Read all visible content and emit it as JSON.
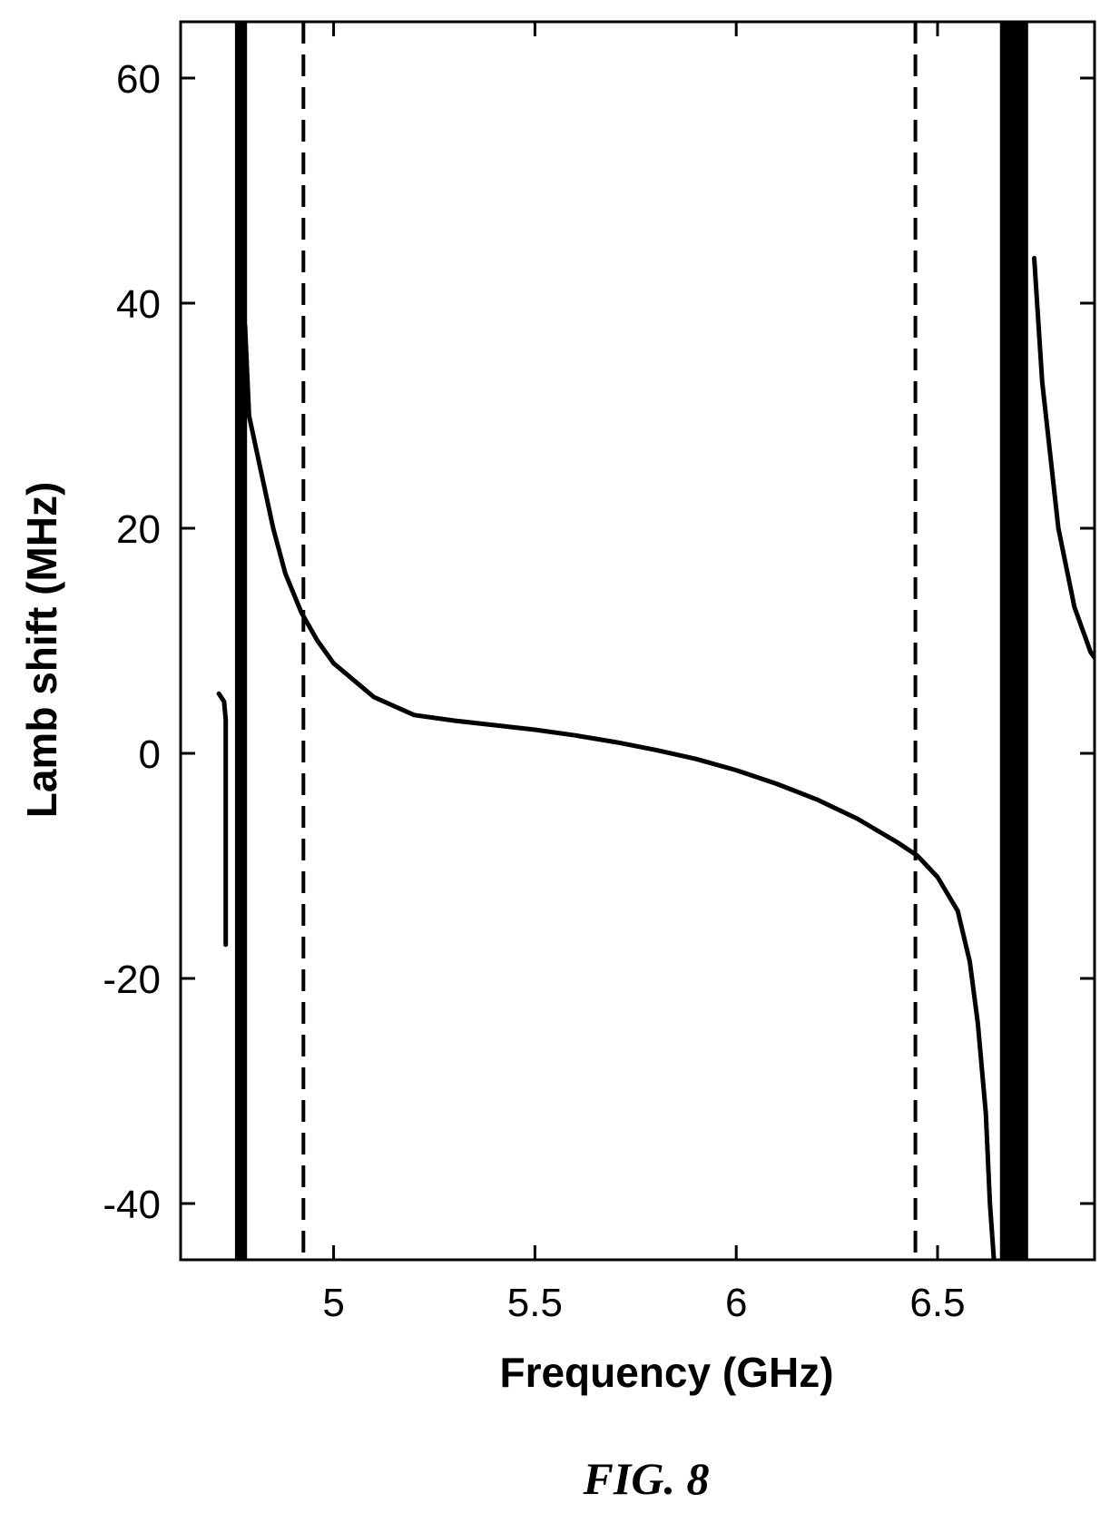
{
  "chart_data": {
    "type": "line",
    "title": "",
    "xlabel": "Frequency  (GHz)",
    "ylabel": "Lamb shift (MHz)",
    "xlim": [
      4.62,
      6.89
    ],
    "ylim": [
      -45,
      65
    ],
    "xticks": [
      5,
      5.5,
      6,
      6.5
    ],
    "xtick_labels": [
      "5",
      "5.5",
      "6",
      "6.5"
    ],
    "yticks": [
      -40,
      -20,
      0,
      20,
      40,
      60
    ],
    "ytick_labels": [
      "-40",
      "-20",
      "0",
      "20",
      "40",
      "60"
    ],
    "grid": false,
    "line_color": "#000000",
    "series": [
      {
        "style": "solid",
        "segments": [
          [
            [
              4.715,
              5.3
            ],
            [
              4.728,
              4.6
            ],
            [
              4.732,
              3
            ],
            [
              4.732,
              -17
            ]
          ],
          [
            [
              4.78,
              38
            ],
            [
              4.79,
              30
            ],
            [
              4.82,
              25
            ],
            [
              4.85,
              20
            ],
            [
              4.88,
              16
            ],
            [
              4.92,
              12.5
            ],
            [
              4.96,
              10
            ],
            [
              5.0,
              8
            ],
            [
              5.05,
              6.5
            ],
            [
              5.1,
              5
            ],
            [
              5.2,
              3.4
            ],
            [
              5.3,
              2.9
            ],
            [
              5.4,
              2.5
            ],
            [
              5.5,
              2.1
            ],
            [
              5.6,
              1.6
            ],
            [
              5.7,
              1.0
            ],
            [
              5.8,
              0.3
            ],
            [
              5.9,
              -0.5
            ],
            [
              6.0,
              -1.5
            ],
            [
              6.1,
              -2.7
            ],
            [
              6.2,
              -4.1
            ],
            [
              6.3,
              -5.8
            ],
            [
              6.4,
              -7.9
            ],
            [
              6.45,
              -9.1
            ],
            [
              6.5,
              -11
            ],
            [
              6.55,
              -14
            ],
            [
              6.58,
              -18.5
            ],
            [
              6.6,
              -24
            ],
            [
              6.62,
              -32
            ],
            [
              6.63,
              -40
            ],
            [
              6.64,
              -45
            ]
          ],
          [
            [
              6.74,
              44
            ],
            [
              6.76,
              33
            ],
            [
              6.8,
              20
            ],
            [
              6.84,
              13
            ],
            [
              6.88,
              9
            ],
            [
              6.89,
              8.5
            ]
          ]
        ]
      },
      {
        "style": "bold",
        "x_band": [
          4.755,
          4.785
        ]
      },
      {
        "style": "bold",
        "x_band": [
          6.655,
          6.725
        ]
      },
      {
        "style": "dashed",
        "x": 4.925
      },
      {
        "style": "dashed",
        "x": 6.445
      }
    ]
  },
  "caption": "FIG. 8"
}
